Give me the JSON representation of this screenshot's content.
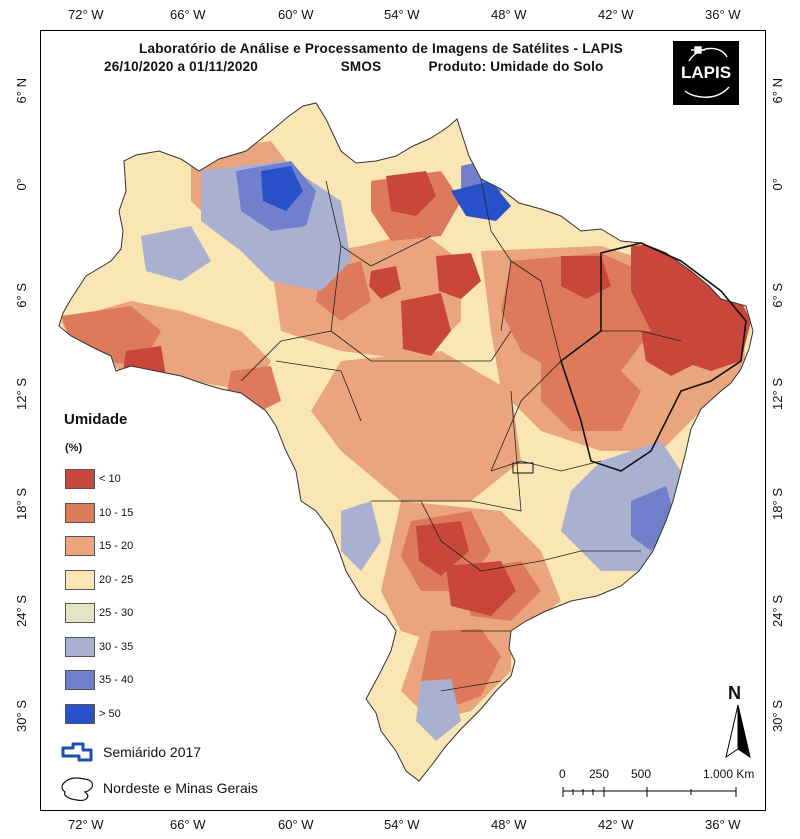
{
  "title_line1": "Laboratório de Análise e Processamento de Imagens de Satélites - LAPIS",
  "title_date": "26/10/2020  a  01/11/2020",
  "title_sensor": "SMOS",
  "title_product": "Produto: Umidade do Solo",
  "logo_text": "LAPIS",
  "lon_labels": [
    "72° W",
    "66° W",
    "60° W",
    "54° W",
    "48° W",
    "42° W",
    "36° W"
  ],
  "lat_labels": [
    "6° N",
    "0°",
    "6° S",
    "12° S",
    "18° S",
    "24° S",
    "30° S"
  ],
  "legend": {
    "title": "Umidade",
    "unit": "(%)",
    "classes": [
      {
        "label": "< 10",
        "color": "#c8463a"
      },
      {
        "label": "10 - 15",
        "color": "#de7a5c"
      },
      {
        "label": "15 - 20",
        "color": "#eaa57e"
      },
      {
        "label": "20 - 25",
        "color": "#fae6b4"
      },
      {
        "label": "25 - 30",
        "color": "#e6e4c6"
      },
      {
        "label": "30 - 35",
        "color": "#aab0d0"
      },
      {
        "label": "35 - 40",
        "color": "#7080cc"
      },
      {
        "label": "> 50",
        "color": "#2850c8"
      }
    ],
    "semiarid_label": "Semiárido 2017",
    "nordeste_label": "Nordeste e Minas Gerais"
  },
  "scale_bar": {
    "labels": [
      "0",
      "250",
      "500",
      "1.000 Km"
    ]
  },
  "north_label": "N"
}
